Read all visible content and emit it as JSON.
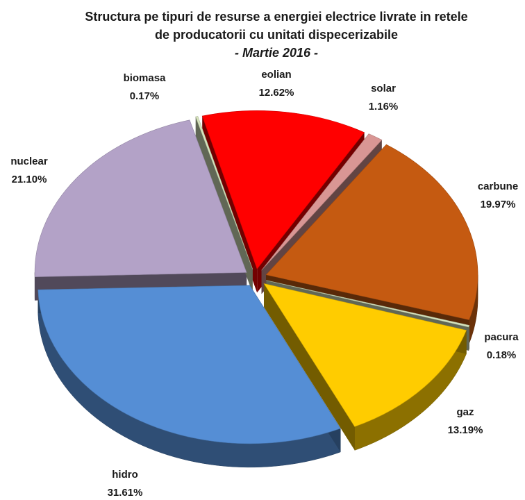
{
  "chart_data": {
    "type": "pie",
    "title": [
      "Structura pe tipuri de resurse a energiei electrice livrate in retele",
      "de producatorii cu unitati dispecerizabile"
    ],
    "subtitle": "- Martie 2016 -",
    "categories": [
      "eolian",
      "solar",
      "carbune",
      "pacura",
      "gaz",
      "hidro",
      "nuclear",
      "biomasa"
    ],
    "values": [
      12.62,
      1.16,
      19.97,
      0.18,
      13.19,
      31.61,
      21.1,
      0.17
    ],
    "value_labels": [
      "12.62%",
      "1.16%",
      "19.97%",
      "0.18%",
      "13.19%",
      "31.61%",
      "21.10%",
      "0.17%"
    ],
    "colors": [
      "#ff0000",
      "#d99694",
      "#c55a11",
      "#d7e4bd",
      "#ffcc00",
      "#558ed5",
      "#b3a2c7",
      "#d7e4bd"
    ]
  }
}
